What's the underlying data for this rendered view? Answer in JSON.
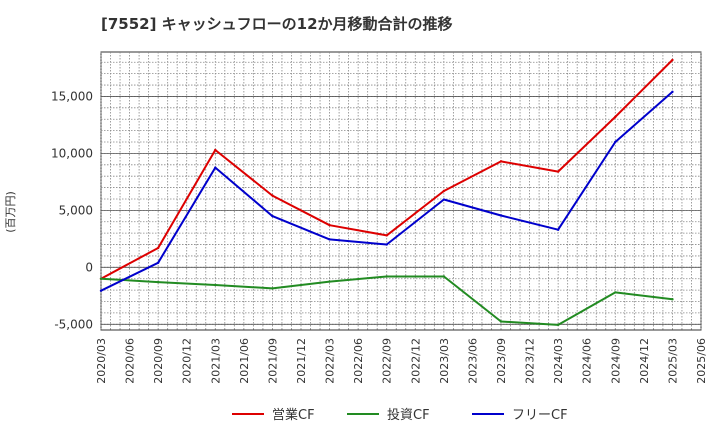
{
  "chart_data": {
    "type": "line",
    "title": "[7552]  キャッシュフローの12か月移動合計の推移",
    "ylabel": "(百万円)",
    "xlabel": "",
    "ylim": [
      -5500,
      18900
    ],
    "y_ticks": [
      -5000,
      0,
      5000,
      10000,
      15000
    ],
    "y_tick_labels": [
      "-5,000",
      "0",
      "5,000",
      "10,000",
      "15,000"
    ],
    "x_ticks": [
      "2020/03",
      "2020/06",
      "2020/09",
      "2020/12",
      "2021/03",
      "2021/06",
      "2021/09",
      "2021/12",
      "2022/03",
      "2022/06",
      "2022/09",
      "2022/12",
      "2023/03",
      "2023/06",
      "2023/09",
      "2023/12",
      "2024/03",
      "2024/06",
      "2024/09",
      "2024/12",
      "2025/03",
      "2025/06"
    ],
    "x": [
      "2020/03",
      "2020/09",
      "2021/03",
      "2021/09",
      "2022/03",
      "2022/09",
      "2023/03",
      "2023/09",
      "2024/03",
      "2024/09",
      "2025/03"
    ],
    "series": [
      {
        "name": "営業CF",
        "color": "#dd0000",
        "values": [
          -1000,
          1700,
          10300,
          6300,
          3700,
          2800,
          6700,
          9300,
          8400,
          13200,
          18200
        ]
      },
      {
        "name": "投資CF",
        "color": "#228b22",
        "values": [
          -1000,
          -1300,
          -1550,
          -1850,
          -1250,
          -800,
          -800,
          -4750,
          -5050,
          -2200,
          -2800
        ]
      },
      {
        "name": "フリーCF",
        "color": "#0000cc",
        "values": [
          -2050,
          400,
          8750,
          4500,
          2450,
          2000,
          5950,
          4550,
          3300,
          11000,
          15400
        ]
      }
    ],
    "grid": true,
    "legend_position": "bottom-center"
  }
}
